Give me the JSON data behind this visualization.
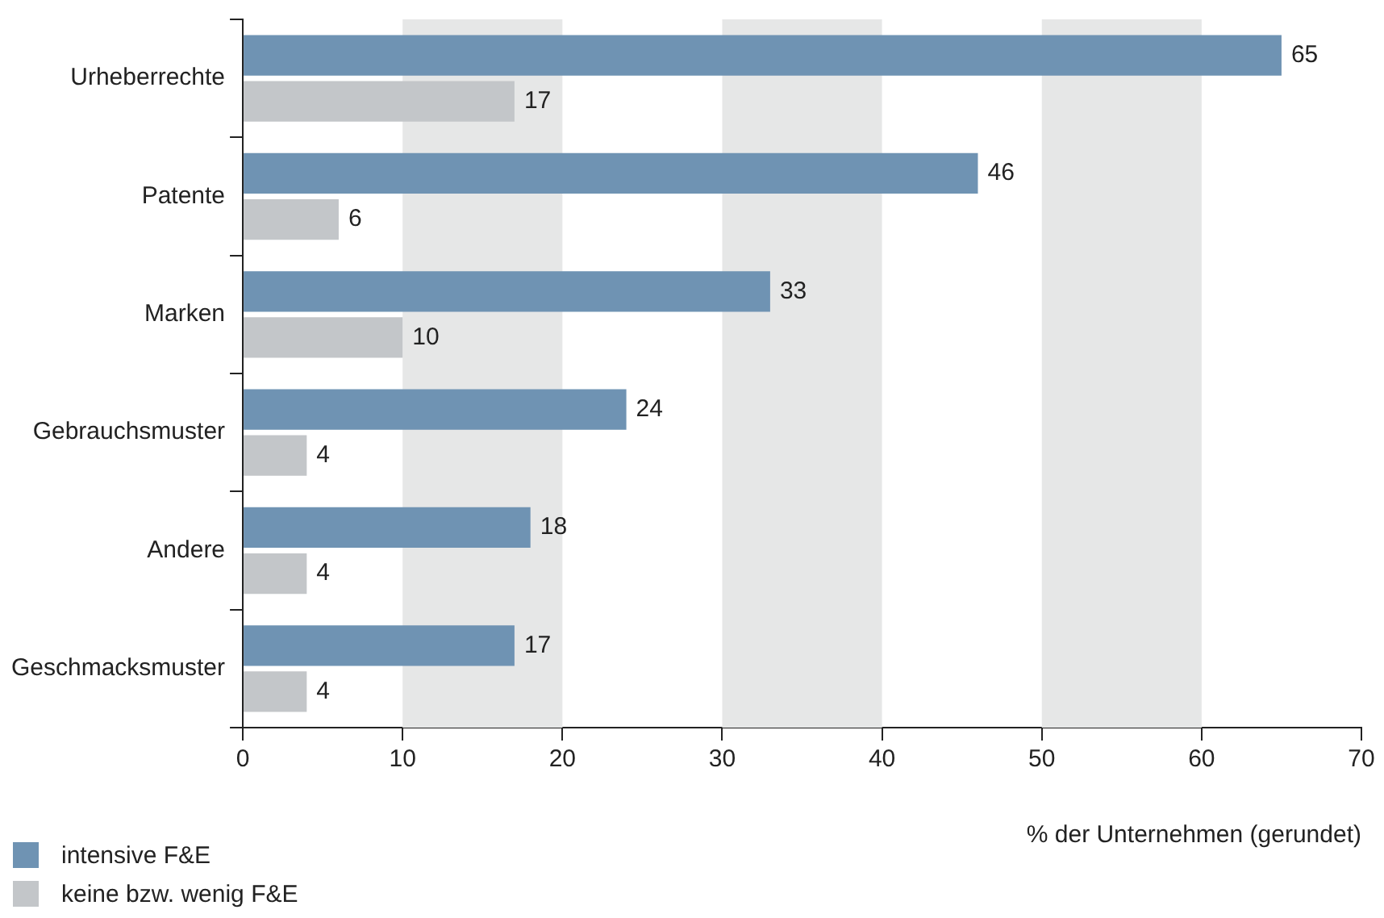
{
  "chart_data": {
    "type": "bar",
    "orientation": "horizontal",
    "xlabel": "% der Unternehmen (gerundet)",
    "categories": [
      "Urheberrechte",
      "Patente",
      "Marken",
      "Gebrauchsmuster",
      "Andere",
      "Geschmacksmuster"
    ],
    "series": [
      {
        "name": "intensive F&E",
        "color": "#6f93b3",
        "values": [
          65,
          46,
          33,
          24,
          18,
          17
        ]
      },
      {
        "name": "keine bzw. wenig F&E",
        "color": "#c3c6c9",
        "values": [
          17,
          6,
          10,
          4,
          4,
          4
        ]
      }
    ],
    "xlim": [
      0,
      70
    ],
    "xticks": [
      0,
      10,
      20,
      30,
      40,
      50,
      60,
      70
    ],
    "bands": [
      {
        "axis": "x",
        "from": 10,
        "to": 20,
        "color": "#e6e7e7"
      },
      {
        "axis": "x",
        "from": 30,
        "to": 40,
        "color": "#e6e7e7"
      },
      {
        "axis": "x",
        "from": 50,
        "to": 60,
        "color": "#e6e7e7"
      }
    ],
    "data_labels": true,
    "legend": "bottom left",
    "grid": false
  }
}
